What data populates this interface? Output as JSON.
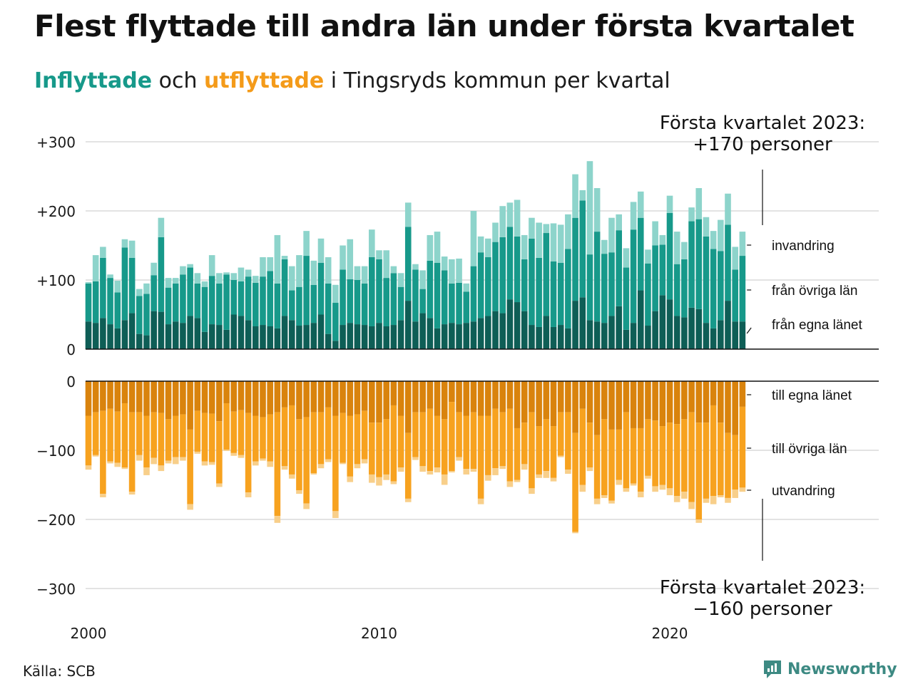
{
  "title": "Flest flyttade till andra län under första kvartalet",
  "subtitle": {
    "part1": "Inflyttade",
    "part2": " och ",
    "part3": "utflyttade",
    "part4": " i Tingsryds kommun per kvartal"
  },
  "source": "Källa: SCB",
  "brand": "Newsworthy",
  "colors": {
    "in_egna": "#0e5e56",
    "in_ovriga": "#17998a",
    "in_invandring": "#8dd4cb",
    "out_egna": "#d9830d",
    "out_ovriga": "#f7a21f",
    "out_utvandring": "#f8cf8a",
    "grid": "#e3e3e3"
  },
  "chart_data": {
    "type": "bar",
    "stacked": true,
    "x_start": 2000,
    "x_step": 0.25,
    "x_ticks": [
      "2000",
      "2010",
      "2020"
    ],
    "y_ticks_top": [
      "+300",
      "+200",
      "+100",
      "0"
    ],
    "y_ticks_bottom": [
      "0",
      "−100",
      "−200",
      "−300"
    ],
    "ylim_top": [
      0,
      300
    ],
    "ylim_bottom": [
      -300,
      0
    ],
    "grid": true,
    "annotation_top": [
      "Första kvartalet 2023:",
      "+170 personer"
    ],
    "annotation_bottom": [
      "Första kvartalet 2023:",
      "−160 personer"
    ],
    "labels_in": [
      "invandring",
      "från övriga län",
      "från egna länet"
    ],
    "labels_out": [
      "till egna länet",
      "till övriga län",
      "utvandring"
    ],
    "inflow": {
      "egna": [
        40,
        38,
        45,
        36,
        30,
        42,
        52,
        22,
        20,
        55,
        54,
        36,
        40,
        38,
        48,
        45,
        25,
        36,
        35,
        28,
        50,
        48,
        42,
        33,
        35,
        33,
        30,
        48,
        42,
        34,
        35,
        38,
        50,
        22,
        12,
        35,
        38,
        36,
        35,
        33,
        38,
        33,
        35,
        42,
        70,
        40,
        52,
        45,
        30,
        36,
        38,
        36,
        38,
        40,
        45,
        48,
        55,
        52,
        72,
        68,
        55,
        35,
        32,
        48,
        32,
        35,
        30,
        70,
        75,
        42,
        40,
        38,
        48,
        62,
        28,
        38,
        85,
        34,
        55,
        78,
        72,
        48,
        46,
        60,
        58,
        38,
        30,
        42,
        70,
        40,
        40
      ],
      "ovriga": [
        55,
        60,
        87,
        67,
        52,
        105,
        80,
        55,
        60,
        52,
        108,
        53,
        55,
        70,
        70,
        50,
        65,
        70,
        60,
        80,
        50,
        50,
        63,
        63,
        70,
        80,
        65,
        82,
        43,
        56,
        100,
        55,
        75,
        73,
        55,
        80,
        63,
        64,
        60,
        100,
        92,
        70,
        75,
        48,
        107,
        75,
        35,
        83,
        95,
        78,
        57,
        60,
        45,
        80,
        95,
        85,
        100,
        110,
        105,
        95,
        75,
        125,
        100,
        120,
        95,
        90,
        115,
        120,
        140,
        95,
        130,
        100,
        92,
        110,
        90,
        135,
        105,
        90,
        95,
        73,
        125,
        75,
        84,
        125,
        130,
        125,
        115,
        100,
        110,
        75,
        95
      ],
      "invandring": [
        2,
        38,
        16,
        5,
        17,
        12,
        25,
        10,
        15,
        18,
        28,
        14,
        8,
        12,
        5,
        15,
        8,
        30,
        15,
        3,
        10,
        20,
        10,
        10,
        28,
        20,
        70,
        5,
        35,
        46,
        36,
        35,
        35,
        38,
        26,
        35,
        58,
        20,
        25,
        40,
        13,
        40,
        10,
        20,
        35,
        8,
        27,
        37,
        45,
        20,
        35,
        35,
        12,
        80,
        23,
        27,
        28,
        45,
        35,
        53,
        35,
        30,
        51,
        13,
        55,
        55,
        50,
        63,
        15,
        135,
        63,
        20,
        50,
        23,
        28,
        40,
        38,
        20,
        35,
        14,
        25,
        47,
        25,
        20,
        45,
        28,
        26,
        45,
        45,
        33,
        35
      ]
    },
    "outflow": {
      "egna": [
        -50,
        -45,
        -43,
        -40,
        -44,
        -32,
        -45,
        -45,
        -50,
        -45,
        -46,
        -55,
        -50,
        -48,
        -70,
        -43,
        -46,
        -47,
        -58,
        -32,
        -44,
        -42,
        -46,
        -50,
        -52,
        -48,
        -45,
        -38,
        -35,
        -55,
        -52,
        -45,
        -45,
        -38,
        -50,
        -46,
        -50,
        -48,
        -43,
        -60,
        -60,
        -55,
        -35,
        -50,
        -75,
        -45,
        -45,
        -40,
        -50,
        -55,
        -30,
        -45,
        -50,
        -45,
        -50,
        -50,
        -40,
        -45,
        -40,
        -68,
        -60,
        -45,
        -65,
        -55,
        -65,
        -45,
        -45,
        -75,
        -40,
        -60,
        -78,
        -55,
        -70,
        -70,
        -45,
        -68,
        -68,
        -55,
        -57,
        -65,
        -60,
        -62,
        -55,
        -45,
        -60,
        -60,
        -35,
        -60,
        -75,
        -78,
        -37
      ],
      "ovriga": [
        -72,
        -62,
        -120,
        -76,
        -74,
        -93,
        -115,
        -62,
        -75,
        -66,
        -76,
        -60,
        -60,
        -62,
        -108,
        -59,
        -70,
        -70,
        -90,
        -67,
        -60,
        -65,
        -115,
        -66,
        -60,
        -68,
        -150,
        -85,
        -100,
        -103,
        -125,
        -88,
        -75,
        -75,
        -138,
        -72,
        -88,
        -72,
        -70,
        -75,
        -79,
        -80,
        -110,
        -75,
        -95,
        -65,
        -78,
        -90,
        -75,
        -80,
        -100,
        -65,
        -77,
        -82,
        -120,
        -86,
        -86,
        -78,
        -105,
        -75,
        -60,
        -110,
        -70,
        -75,
        -75,
        -63,
        -83,
        -143,
        -110,
        -65,
        -92,
        -110,
        -103,
        -73,
        -110,
        -80,
        -92,
        -82,
        -95,
        -85,
        -95,
        -104,
        -105,
        -130,
        -140,
        -110,
        -131,
        -105,
        -94,
        -79,
        -117
      ],
      "utvandring": [
        -6,
        -2,
        -5,
        -3,
        -6,
        -2,
        -4,
        -8,
        -11,
        -9,
        -8,
        -4,
        -10,
        -5,
        -8,
        -3,
        -6,
        -4,
        -5,
        -2,
        -4,
        -4,
        -7,
        -6,
        -3,
        -8,
        -10,
        -5,
        -6,
        -5,
        -8,
        -2,
        -6,
        -4,
        -10,
        -2,
        -8,
        -6,
        -6,
        -12,
        -12,
        -8,
        -4,
        -6,
        -5,
        -4,
        -8,
        -5,
        -7,
        -15,
        -2,
        -5,
        -8,
        -4,
        -8,
        -8,
        -10,
        -4,
        -8,
        -3,
        -8,
        -8,
        -5,
        -10,
        -5,
        -2,
        -6,
        -2,
        -10,
        -5,
        -8,
        -4,
        -4,
        -7,
        -5,
        -3,
        -8,
        -4,
        -8,
        -7,
        -10,
        -9,
        -10,
        -10,
        -5,
        -6,
        -12,
        -3,
        -7,
        -12,
        -6
      ]
    }
  }
}
